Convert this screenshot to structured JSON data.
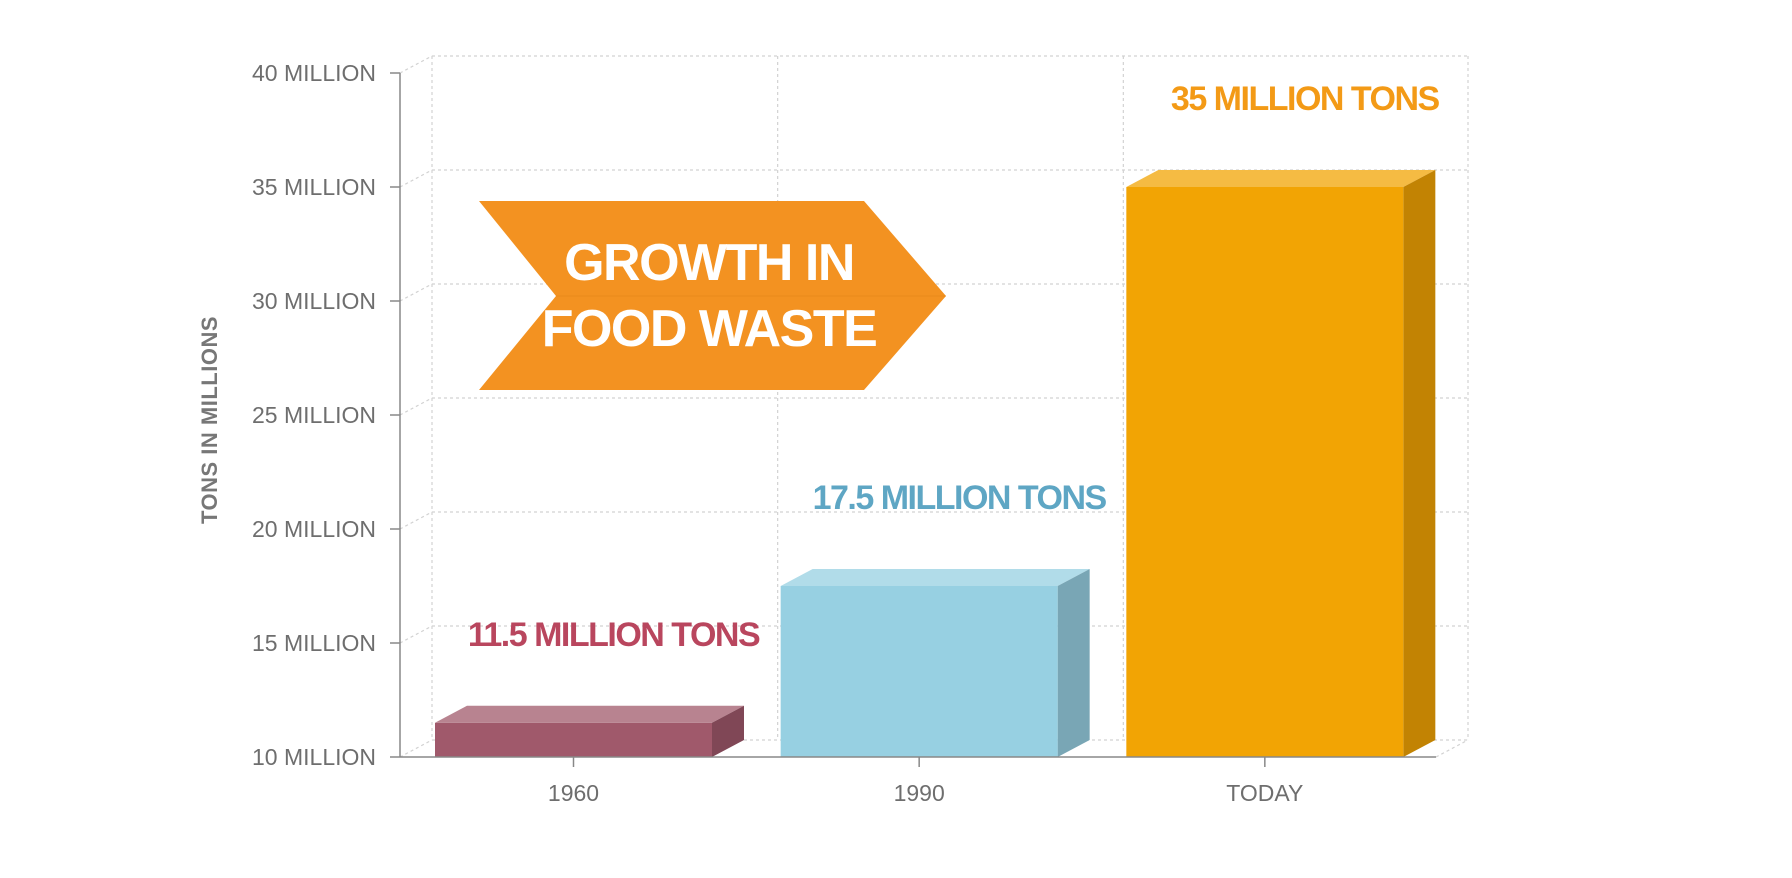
{
  "chart_data": {
    "type": "bar",
    "categories": [
      "1960",
      "1990",
      "TODAY"
    ],
    "values": [
      11.5,
      17.5,
      35
    ],
    "data_labels": [
      "11.5 MILLION TONS",
      "17.5 MILLION TONS",
      "35 MILLION TONS"
    ],
    "colors": [
      "#a0596b",
      "#97d0e2",
      "#f2a404"
    ],
    "label_colors": [
      "#b9465e",
      "#5ea6c4",
      "#f39a16"
    ],
    "ylabel": "TONS IN MILLIONS",
    "ylim": [
      10,
      40
    ],
    "yticks": [
      10,
      15,
      20,
      25,
      30,
      35,
      40
    ],
    "ytick_labels": [
      "10 MILLION",
      "15 MILLION",
      "20 MILLION",
      "25 MILLION",
      "30 MILLION",
      "35 MILLION",
      "40 MILLION"
    ],
    "grid": true
  },
  "banner": {
    "line1": "GROWTH IN",
    "line2": "FOOD WASTE",
    "color": "#f39221"
  }
}
